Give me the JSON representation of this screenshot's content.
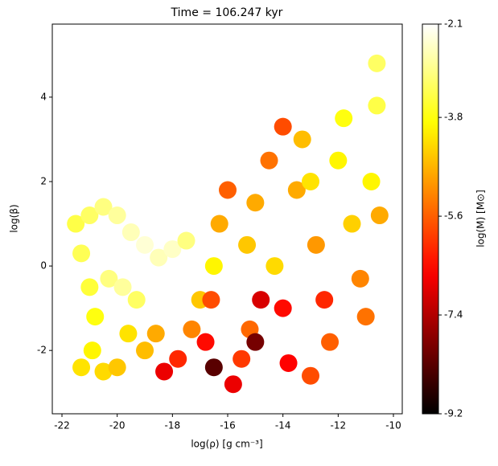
{
  "chart_data": {
    "type": "scatter",
    "title": "Time = 106.247 kyr",
    "x_label": "log(ρ) [g cm⁻³]",
    "y_label": "log(β)",
    "colorbar_label": "log(M) [M⊙]",
    "colormap": "hot",
    "xlim": [
      -22.35,
      -9.68
    ],
    "ylim": [
      -3.5,
      5.73
    ],
    "xticks": [
      -22,
      -20,
      -18,
      -16,
      -14,
      -12,
      -10
    ],
    "yticks": [
      -2,
      0,
      2,
      4
    ],
    "clim": [
      -9.2,
      -2.1
    ],
    "cticks": [
      -2.1,
      -3.8,
      -5.6,
      -7.4,
      -9.2
    ],
    "series": [
      {
        "x": [
          -21.5,
          -21.3,
          -21.0,
          -20.5,
          -20.0,
          -19.5,
          -19.0,
          -21.0,
          -20.8,
          -20.9,
          -21.3,
          -20.5,
          -20.0,
          -20.3,
          -19.8,
          -19.3,
          -19.6,
          -19.0,
          -18.6,
          -18.5,
          -18.0,
          -17.5,
          -18.3,
          -17.8,
          -17.3,
          -17.0,
          -16.5,
          -16.8,
          -16.5,
          -16.3,
          -16.0,
          -15.8,
          -15.5,
          -15.2,
          -15.0,
          -14.8,
          -15.3,
          -15.0,
          -14.5,
          -14.3,
          -14.0,
          -13.8,
          -13.5,
          -13.3,
          -13.0,
          -12.8,
          -12.5,
          -12.3,
          -12.0,
          -11.8,
          -11.5,
          -11.2,
          -11.0,
          -10.8,
          -10.6,
          -10.5,
          -10.6,
          -14.0,
          -13.0,
          -16.6
        ],
        "y": [
          1.0,
          0.3,
          1.2,
          1.4,
          1.2,
          0.8,
          0.5,
          -0.5,
          -1.2,
          -2.0,
          -2.4,
          -2.5,
          -2.4,
          -0.3,
          -0.5,
          -0.8,
          -1.6,
          -2.0,
          -1.6,
          0.2,
          0.4,
          0.6,
          -2.5,
          -2.2,
          -1.5,
          -0.8,
          -2.4,
          -1.8,
          0.0,
          1.0,
          1.8,
          -2.8,
          -2.2,
          -1.5,
          -1.8,
          -0.8,
          0.5,
          1.5,
          2.5,
          0.0,
          -1.0,
          -2.3,
          1.8,
          3.0,
          2.0,
          0.5,
          -0.8,
          -1.8,
          2.5,
          3.5,
          1.0,
          -0.3,
          -1.2,
          2.0,
          3.8,
          1.2,
          4.8,
          3.3,
          -2.6,
          -0.8
        ],
        "c": [
          -3.4,
          -3.3,
          -3.2,
          -3.0,
          -2.8,
          -2.6,
          -2.4,
          -3.5,
          -3.8,
          -4.0,
          -4.2,
          -4.3,
          -4.5,
          -3.0,
          -2.8,
          -3.2,
          -4.2,
          -4.6,
          -4.8,
          -2.6,
          -2.5,
          -3.0,
          -6.8,
          -6.2,
          -5.2,
          -4.5,
          -8.3,
          -6.5,
          -4.0,
          -4.8,
          -5.6,
          -6.8,
          -6.0,
          -5.5,
          -8.0,
          -7.0,
          -4.5,
          -4.8,
          -5.4,
          -4.3,
          -6.5,
          -6.6,
          -4.8,
          -4.6,
          -4.2,
          -5.0,
          -6.2,
          -5.6,
          -4.0,
          -3.8,
          -4.4,
          -5.2,
          -5.4,
          -4.0,
          -3.4,
          -4.8,
          -3.2,
          -5.8,
          -5.8,
          -5.8
        ]
      }
    ]
  }
}
